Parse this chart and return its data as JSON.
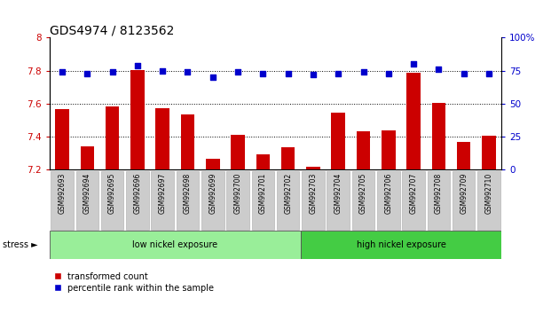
{
  "title": "GDS4974 / 8123562",
  "categories": [
    "GSM992693",
    "GSM992694",
    "GSM992695",
    "GSM992696",
    "GSM992697",
    "GSM992698",
    "GSM992699",
    "GSM992700",
    "GSM992701",
    "GSM992702",
    "GSM992703",
    "GSM992704",
    "GSM992705",
    "GSM992706",
    "GSM992707",
    "GSM992708",
    "GSM992709",
    "GSM992710"
  ],
  "bar_values": [
    7.565,
    7.34,
    7.585,
    7.805,
    7.57,
    7.535,
    7.265,
    7.41,
    7.295,
    7.335,
    7.215,
    7.545,
    7.43,
    7.435,
    7.79,
    7.605,
    7.365,
    7.405
  ],
  "dot_values": [
    74,
    73,
    74,
    79,
    75,
    74,
    70,
    74,
    73,
    73,
    72,
    73,
    74,
    73,
    80,
    76,
    73,
    73
  ],
  "ylim_left": [
    7.2,
    8.0
  ],
  "ylim_right": [
    0,
    100
  ],
  "yticks_left": [
    7.2,
    7.4,
    7.6,
    7.8,
    8.0
  ],
  "yticks_right": [
    0,
    25,
    50,
    75,
    100
  ],
  "bar_color": "#cc0000",
  "dot_color": "#0000cc",
  "group1_label": "low nickel exposure",
  "group1_count": 10,
  "group2_label": "high nickel exposure",
  "group2_count": 8,
  "group_label_title": "stress",
  "group1_color": "#99ee99",
  "group2_color": "#44cc44",
  "legend_bar_label": "transformed count",
  "legend_dot_label": "percentile rank within the sample",
  "background_plot": "#ffffff",
  "tick_bg": "#cccccc",
  "title_fontsize": 10,
  "axis_fontsize": 7.5
}
